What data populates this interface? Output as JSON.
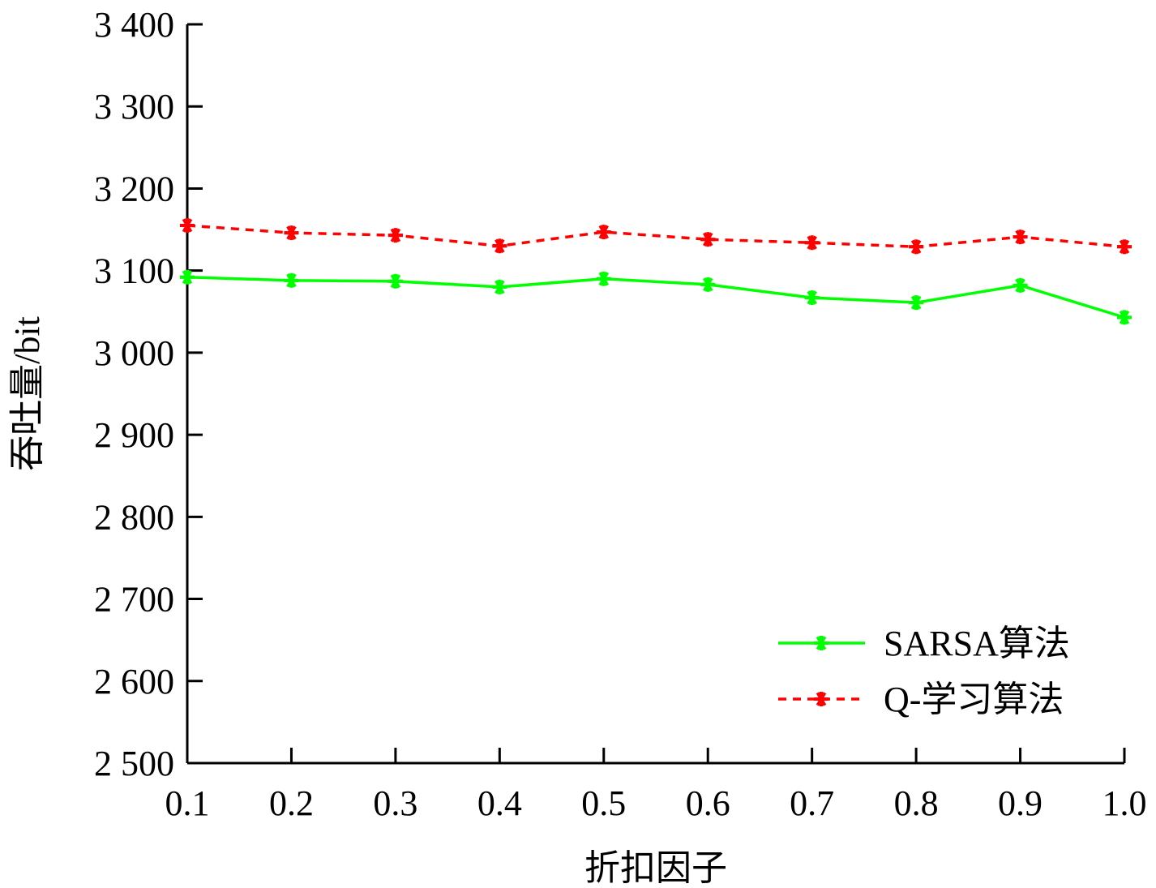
{
  "chart_data": {
    "type": "line",
    "xlabel": "折扣因子",
    "ylabel": "吞吐量/bit",
    "x": [
      0.1,
      0.2,
      0.3,
      0.4,
      0.5,
      0.6,
      0.7,
      0.8,
      0.9,
      1.0
    ],
    "x_tick_labels": [
      "0.1",
      "0.2",
      "0.3",
      "0.4",
      "0.5",
      "0.6",
      "0.7",
      "0.8",
      "0.9",
      "1.0"
    ],
    "y_ticks": [
      2500,
      2600,
      2700,
      2800,
      2900,
      3000,
      3100,
      3200,
      3300,
      3400
    ],
    "y_tick_labels": [
      "2 500",
      "2 600",
      "2 700",
      "2 800",
      "2 900",
      "3 000",
      "3 100",
      "3 200",
      "3 300",
      "3 400"
    ],
    "xlim": [
      0.1,
      1.0
    ],
    "ylim": [
      2500,
      3400
    ],
    "grid": false,
    "legend_position": "bottom-right",
    "series": [
      {
        "name": "SARSA算法",
        "color": "#00ff00",
        "line_style": "solid",
        "marker": "asterisk",
        "values": [
          3092,
          3088,
          3087,
          3080,
          3090,
          3083,
          3067,
          3061,
          3082,
          3043
        ]
      },
      {
        "name": "Q-学习算法",
        "color": "#ff0000",
        "line_style": "dashed",
        "marker": "asterisk",
        "values": [
          3155,
          3146,
          3143,
          3130,
          3147,
          3138,
          3134,
          3129,
          3141,
          3129
        ]
      }
    ]
  }
}
